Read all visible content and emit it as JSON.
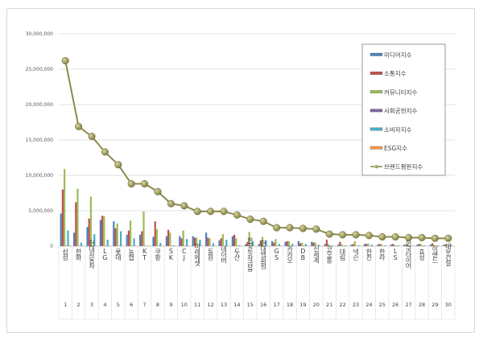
{
  "chart_data": {
    "type": "bar",
    "title": "",
    "xlabel": "",
    "ylabel": "",
    "ylim": [
      0,
      30000000
    ],
    "yticks": [
      "0",
      "5,000,000",
      "10,000,000",
      "15,000,000",
      "20,000,000",
      "25,000,000",
      "30,000,000"
    ],
    "grid": true,
    "legend_position": "top-right",
    "ranks": [
      "1",
      "2",
      "3",
      "4",
      "5",
      "6",
      "7",
      "8",
      "9",
      "10",
      "11",
      "12",
      "13",
      "14",
      "15",
      "16",
      "17",
      "18",
      "19",
      "20",
      "21",
      "22",
      "23",
      "24",
      "25",
      "26",
      "27",
      "28",
      "29",
      "30"
    ],
    "categories": [
      "삼성",
      "한화",
      "현대자동차",
      "LG",
      "롯데",
      "농협",
      "KT",
      "쿠팡",
      "SK",
      "CJ",
      "미래에셋",
      "동원",
      "네이버",
      "두산",
      "한국투자금융",
      "현대백화점",
      "GS",
      "카카오",
      "DB",
      "신세계",
      "코오롱",
      "대림",
      "넥슨",
      "한진",
      "한라",
      "LS",
      "한국타이어",
      "효성",
      "이랜드",
      "대우건설"
    ],
    "series": [
      {
        "name": "미디어지수",
        "type": "bar",
        "color": "#4f81bd",
        "values": [
          4600000,
          1900000,
          2700000,
          3700000,
          3500000,
          1600000,
          1600000,
          1300000,
          1400000,
          1400000,
          1400000,
          1900000,
          800000,
          1400000,
          300000,
          300000,
          700000,
          600000,
          700000,
          600000,
          300000,
          200000,
          200000,
          300000,
          200000,
          200000,
          200000,
          200000,
          200000,
          200000
        ]
      },
      {
        "name": "소통지수",
        "type": "bar",
        "color": "#c0504d",
        "values": [
          8000000,
          6200000,
          3900000,
          4300000,
          2500000,
          2200000,
          2100000,
          3500000,
          2300000,
          1100000,
          1200000,
          1200000,
          1100000,
          1600000,
          600000,
          800000,
          500000,
          700000,
          400000,
          500000,
          900000,
          600000,
          300000,
          300000,
          300000,
          300000,
          200000,
          300000,
          400000,
          200000
        ]
      },
      {
        "name": "커뮤니티지수",
        "type": "bar",
        "color": "#9bbb59",
        "values": [
          10900000,
          8100000,
          7000000,
          4200000,
          3200000,
          3600000,
          4900000,
          2400000,
          1900000,
          2200000,
          1200000,
          1100000,
          1700000,
          1100000,
          2000000,
          1300000,
          1000000,
          700000,
          500000,
          500000,
          300000,
          300000,
          700000,
          400000,
          300000,
          200000,
          300000,
          300000,
          200000,
          200000
        ]
      },
      {
        "name": "사회공헌지수",
        "type": "bar",
        "color": "#8064a2",
        "values": [
          50000,
          30000,
          30000,
          20000,
          30000,
          20000,
          20000,
          20000,
          20000,
          20000,
          20000,
          20000,
          20000,
          20000,
          20000,
          20000,
          20000,
          20000,
          20000,
          20000,
          20000,
          20000,
          20000,
          20000,
          20000,
          20000,
          20000,
          20000,
          20000,
          20000
        ]
      },
      {
        "name": "소비자지수",
        "type": "bar",
        "color": "#4bacc6",
        "values": [
          2200000,
          500000,
          1700000,
          900000,
          2100000,
          1100000,
          50000,
          450000,
          100000,
          1000000,
          900000,
          400000,
          900000,
          100000,
          700000,
          800000,
          300000,
          300000,
          300000,
          200000,
          100000,
          100000,
          100000,
          200000,
          100000,
          100000,
          100000,
          100000,
          100000,
          200000
        ]
      },
      {
        "name": "ESG지수",
        "type": "bar",
        "color": "#f79646",
        "values": [
          100000,
          50000,
          50000,
          50000,
          50000,
          50000,
          50000,
          50000,
          50000,
          50000,
          50000,
          50000,
          50000,
          50000,
          50000,
          50000,
          50000,
          50000,
          50000,
          50000,
          50000,
          50000,
          50000,
          50000,
          50000,
          50000,
          50000,
          50000,
          50000,
          50000
        ]
      },
      {
        "name": "브랜드평판지수",
        "type": "line",
        "color": "#8b8a4f",
        "values": [
          26200000,
          16900000,
          15500000,
          13300000,
          11500000,
          8800000,
          8800000,
          7700000,
          6000000,
          5700000,
          4900000,
          4900000,
          4900000,
          4400000,
          3800000,
          3500000,
          2600000,
          2600000,
          2500000,
          2400000,
          1700000,
          1600000,
          1600000,
          1500000,
          1300000,
          1300000,
          1200000,
          1200000,
          1100000,
          1100000
        ]
      }
    ]
  }
}
